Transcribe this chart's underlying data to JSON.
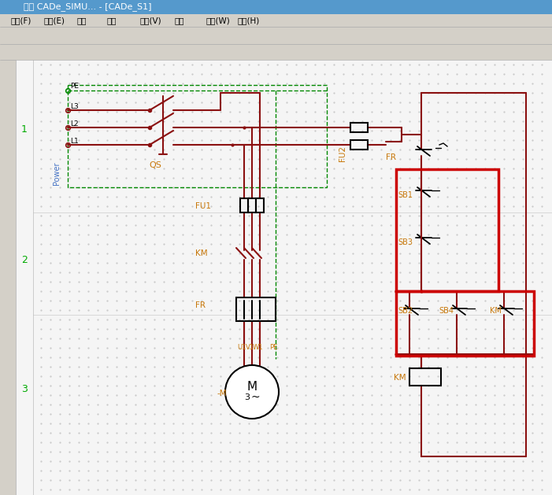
{
  "bg_color": "#e8e8e8",
  "canvas_bg": "#f5f5f5",
  "dark_red": "#8B1010",
  "red_box": "#cc0000",
  "black": "#000000",
  "blue_label": "#4472c4",
  "orange_label": "#c8780a",
  "green_dashed": "#008800",
  "title_bar_color": "#5599cc",
  "toolbar_bg": "#d4d0c8",
  "left_panel_bg": "#e0e0e0",
  "title_text": "关于 CADe_SIMU... - [CADe_S1]",
  "menu_items": [
    "文件(F)",
    "编辑(E)",
    "绘图",
    "模拟",
    "查看(V)",
    "显示",
    "窗口(W)",
    "帮助(H)"
  ],
  "left_numbers": [
    "1",
    "2",
    "3"
  ],
  "power_label": "Power"
}
